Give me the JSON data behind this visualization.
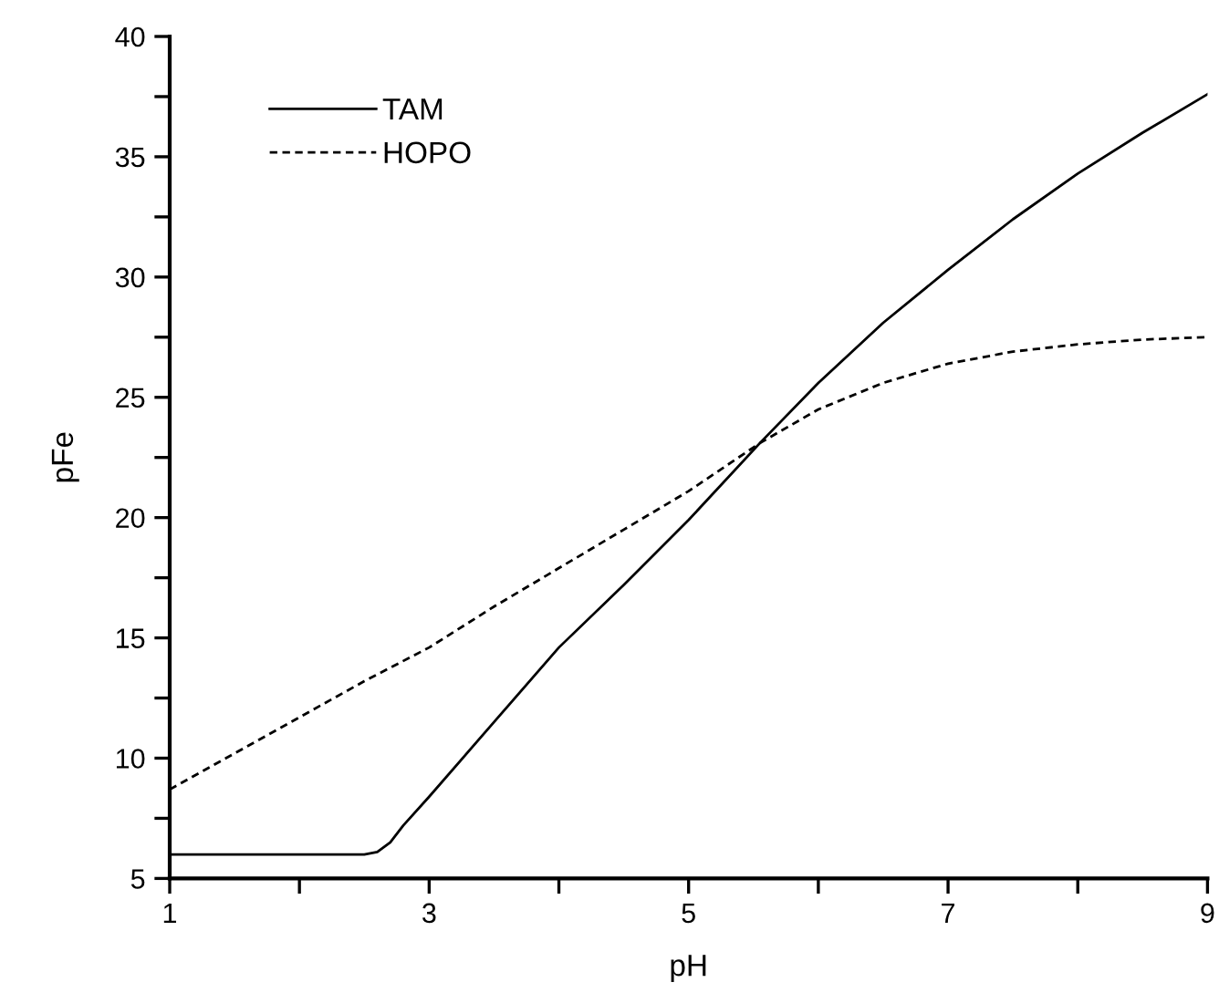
{
  "chart_data": {
    "type": "line",
    "xlabel": "pH",
    "ylabel": "pFe",
    "xlim": [
      1,
      9
    ],
    "ylim": [
      5,
      40
    ],
    "xticks": [
      1,
      {
        "value": 2,
        "label": null
      },
      3,
      {
        "value": 4,
        "label": null
      },
      5,
      {
        "value": 6,
        "label": null
      },
      7,
      {
        "value": 8,
        "label": null
      },
      9
    ],
    "yticks": [
      5,
      {
        "value": 7.5,
        "label": null
      },
      10,
      {
        "value": 12.5,
        "label": null
      },
      15,
      {
        "value": 17.5,
        "label": null
      },
      20,
      {
        "value": 22.5,
        "label": null
      },
      25,
      {
        "value": 27.5,
        "label": null
      },
      30,
      {
        "value": 32.5,
        "label": null
      },
      35,
      {
        "value": 37.5,
        "label": null
      },
      40
    ],
    "grid": false,
    "legend": "top left",
    "series": [
      {
        "name": "TAM",
        "color": "#000000",
        "line_style": "solid",
        "x": [
          1,
          1.5,
          2,
          2.5,
          2.6,
          2.7,
          2.8,
          3,
          3.5,
          4,
          4.5,
          5,
          5.55,
          6,
          6.5,
          7,
          7.5,
          8,
          8.5,
          9
        ],
        "values": [
          6.0,
          6.0,
          6.0,
          6.0,
          6.1,
          6.5,
          7.2,
          8.4,
          11.5,
          14.6,
          17.2,
          19.9,
          23.1,
          25.6,
          28.1,
          30.3,
          32.4,
          34.3,
          36.0,
          37.6
        ]
      },
      {
        "name": "HOPO",
        "color": "#000000",
        "line_style": "dashed",
        "x": [
          1,
          1.5,
          2,
          2.5,
          3,
          3.5,
          4,
          4.5,
          5,
          5.55,
          6,
          6.5,
          7,
          7.5,
          8,
          8.5,
          9
        ],
        "values": [
          8.7,
          10.2,
          11.7,
          13.2,
          14.6,
          16.3,
          17.9,
          19.5,
          21.1,
          23.1,
          24.5,
          25.6,
          26.4,
          26.9,
          27.2,
          27.4,
          27.5
        ]
      }
    ]
  }
}
